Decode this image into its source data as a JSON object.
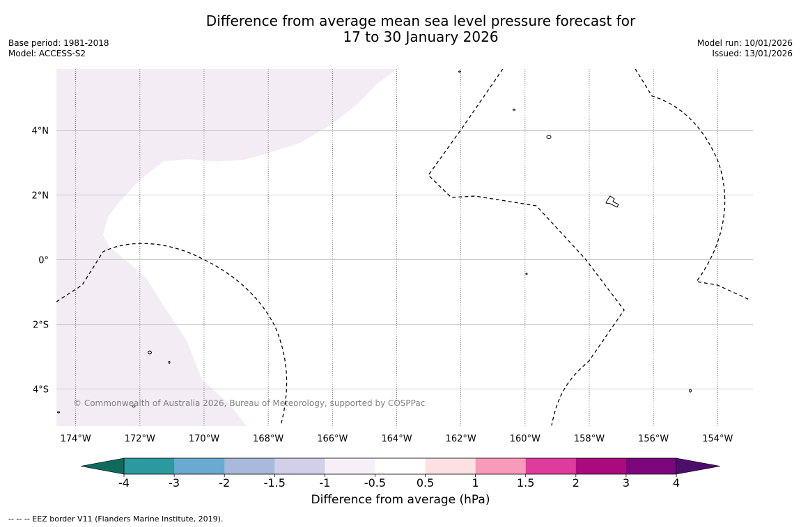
{
  "title": {
    "line1": "Difference from average mean sea level pressure forecast for",
    "line2": "17 to 30 January 2026"
  },
  "meta_left": {
    "base_period": "Base period: 1981-2018",
    "model": "Model: ACCESS-S2"
  },
  "meta_right": {
    "model_run": "Model run: 10/01/2026",
    "issued": "Issued: 13/01/2026"
  },
  "map": {
    "lat_ticks": [
      "4°N",
      "2°N",
      "0°",
      "2°S",
      "4°S"
    ],
    "lon_ticks": [
      "174°W",
      "172°W",
      "170°W",
      "168°W",
      "166°W",
      "164°W",
      "162°W",
      "160°W",
      "158°W",
      "156°W",
      "154°W"
    ],
    "lat_values": [
      4,
      2,
      0,
      -2,
      -4
    ],
    "lon_values": [
      -174,
      -172,
      -170,
      -168,
      -166,
      -164,
      -162,
      -160,
      -158,
      -156,
      -154
    ],
    "extent": {
      "lon_min": -174.6,
      "lon_max": -152.9,
      "lat_min": -5.15,
      "lat_max": 5.9
    },
    "copyright": "© Commonwealth of Australia 2026, Bureau of Meteorology, supported by COSPPac",
    "fill_color_west": "#f3ecf5"
  },
  "colorbar": {
    "label": "Difference from average (hPa)",
    "tick_labels": [
      "-4",
      "-3",
      "-2",
      "-1.5",
      "-1",
      "-0.5",
      "0.5",
      "1",
      "1.5",
      "2",
      "3",
      "4"
    ],
    "colors": [
      "#167a72",
      "#2b9a9e",
      "#6aa9d2",
      "#a8b9dc",
      "#d1d0e8",
      "#f6eff8",
      "#ffffff",
      "#fde1e2",
      "#f89ab9",
      "#de3b9c",
      "#ab0a7f",
      "#7c077c"
    ],
    "extend_low_color": "#0f6a5c",
    "extend_high_color": "#4c0e6a"
  },
  "footnote": "--  --  -- EEZ border V11 (Flanders Marine Institute, 2019)."
}
